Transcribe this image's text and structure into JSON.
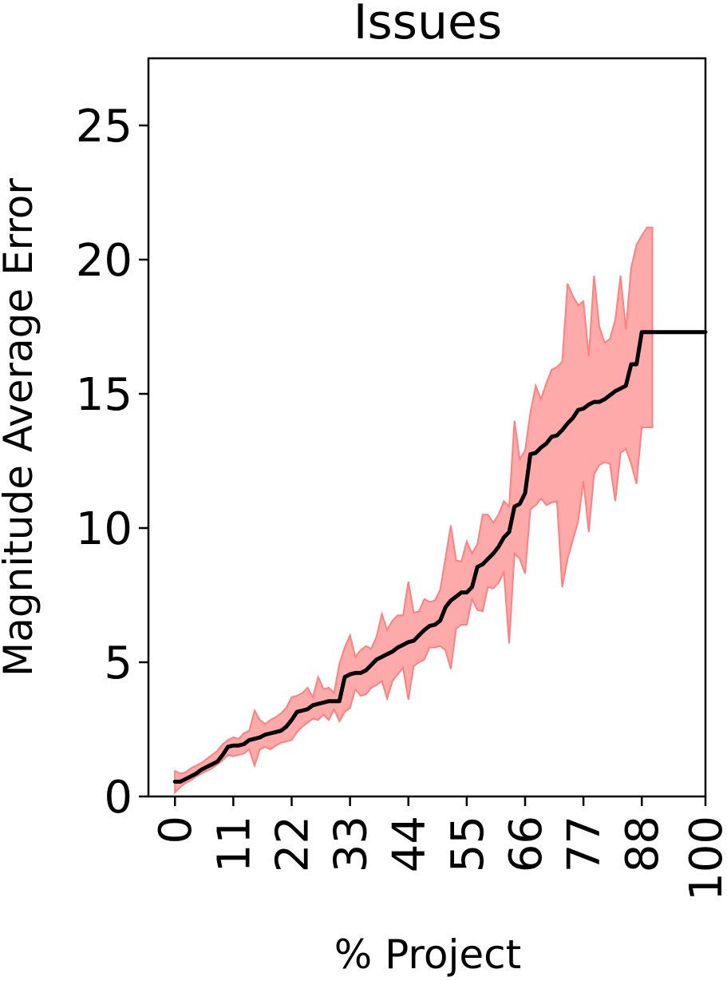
{
  "chart_data": {
    "type": "line",
    "title": "Issues",
    "xlabel": "% Project",
    "ylabel": "Magnitude Average Error",
    "xlim": [
      -5,
      100
    ],
    "ylim": [
      0,
      27.5
    ],
    "xticks": [
      0,
      11,
      22,
      33,
      44,
      55,
      66,
      77,
      88,
      100
    ],
    "xtick_labels": [
      "0",
      "11",
      "22",
      "33",
      "44",
      "55",
      "66",
      "77",
      "88",
      "100"
    ],
    "yticks": [
      0,
      5,
      10,
      15,
      20,
      25
    ],
    "ytick_labels": [
      "0",
      "5",
      "10",
      "15",
      "20",
      "25"
    ],
    "grid": false,
    "legend": "none",
    "colors": {
      "mean_line": "#000000",
      "band_fill": "#ffaaaa",
      "band_edge": "#ff8080"
    },
    "series": [
      {
        "kind": "mean",
        "x": [
          0,
          1,
          2,
          3,
          4,
          5,
          6,
          7,
          8,
          9,
          10,
          11,
          12,
          13,
          14,
          15,
          16,
          17,
          18,
          19,
          20,
          21,
          22,
          23,
          24,
          25,
          26,
          27,
          28,
          29,
          30,
          31,
          32,
          33,
          34,
          35,
          36,
          37,
          38,
          39,
          40,
          41,
          42,
          43,
          44,
          45,
          46,
          47,
          48,
          49,
          50,
          51,
          52,
          53,
          54,
          55,
          56,
          57,
          58,
          59,
          60,
          61,
          62,
          63,
          64,
          65,
          66,
          67,
          68,
          69,
          70,
          71,
          72,
          73,
          74,
          75,
          76,
          77,
          78,
          79,
          80,
          81,
          82,
          83,
          84,
          85,
          86,
          87,
          88,
          89,
          90,
          91,
          92,
          93,
          94,
          95,
          96,
          97,
          98,
          99,
          100
        ],
        "y": [
          0.55,
          0.55,
          0.65,
          0.75,
          0.85,
          1.0,
          1.1,
          1.2,
          1.3,
          1.55,
          1.85,
          1.9,
          1.9,
          1.95,
          2.1,
          2.15,
          2.2,
          2.3,
          2.35,
          2.4,
          2.45,
          2.6,
          2.85,
          3.15,
          3.2,
          3.25,
          3.4,
          3.45,
          3.5,
          3.55,
          3.55,
          3.55,
          4.45,
          4.55,
          4.6,
          4.6,
          4.7,
          4.9,
          5.1,
          5.2,
          5.3,
          5.4,
          5.55,
          5.65,
          5.75,
          5.8,
          6.0,
          6.2,
          6.35,
          6.4,
          6.55,
          7.05,
          7.3,
          7.45,
          7.6,
          7.6,
          7.8,
          8.55,
          8.65,
          8.85,
          9.05,
          9.3,
          9.65,
          9.85,
          10.8,
          10.9,
          11.3,
          12.75,
          12.8,
          13.0,
          13.15,
          13.4,
          13.45,
          13.65,
          13.9,
          14.1,
          14.4,
          14.45,
          14.6,
          14.7,
          14.7,
          14.8,
          14.95,
          15.1,
          15.2,
          15.3,
          16.1,
          16.1,
          17.3,
          17.3,
          17.3,
          17.3,
          17.3,
          17.3,
          17.3,
          17.3,
          17.3,
          17.3,
          17.3,
          17.3,
          17.3
        ]
      },
      {
        "kind": "band_upper",
        "x": [
          0,
          1,
          2,
          3,
          4,
          5,
          6,
          7,
          8,
          9,
          10,
          11,
          12,
          13,
          14,
          15,
          16,
          17,
          18,
          19,
          20,
          21,
          22,
          23,
          24,
          25,
          26,
          27,
          28,
          29,
          30,
          31,
          32,
          33,
          34,
          35,
          36,
          37,
          38,
          39,
          40,
          41,
          42,
          43,
          44,
          45,
          46,
          47,
          48,
          49,
          50,
          51,
          52,
          53,
          54,
          55,
          56,
          57,
          58,
          59,
          60,
          61,
          62,
          63,
          64,
          65,
          66,
          67,
          68,
          69,
          70,
          71,
          72,
          73,
          74,
          75,
          76,
          77,
          78,
          79,
          80,
          81,
          82,
          83,
          84,
          85,
          86,
          87,
          88,
          89,
          90
        ],
        "y": [
          0.95,
          0.85,
          0.9,
          1.05,
          1.15,
          1.25,
          1.4,
          1.55,
          1.7,
          1.95,
          2.1,
          2.2,
          2.15,
          2.35,
          2.45,
          3.2,
          2.85,
          2.7,
          2.85,
          2.95,
          3.1,
          3.3,
          3.7,
          3.75,
          3.85,
          4.05,
          3.7,
          4.45,
          4.0,
          4.05,
          3.85,
          4.95,
          5.55,
          6.0,
          5.2,
          5.45,
          5.6,
          5.5,
          5.95,
          6.8,
          6.2,
          6.55,
          6.75,
          6.75,
          8.0,
          6.85,
          6.9,
          7.35,
          7.25,
          7.3,
          7.7,
          8.9,
          10.1,
          8.8,
          8.75,
          9.5,
          9.05,
          9.4,
          10.5,
          10.5,
          10.2,
          10.5,
          11.0,
          10.8,
          14.0,
          12.55,
          12.9,
          14.3,
          15.3,
          14.8,
          15.4,
          15.9,
          16.0,
          16.2,
          19.1,
          18.65,
          18.3,
          18.45,
          16.4,
          19.4,
          17.5,
          16.9,
          17.05,
          17.75,
          19.4,
          17.4,
          19.7,
          20.55,
          20.9,
          21.2,
          21.2
        ]
      },
      {
        "kind": "band_lower",
        "x": [
          0,
          1,
          2,
          3,
          4,
          5,
          6,
          7,
          8,
          9,
          10,
          11,
          12,
          13,
          14,
          15,
          16,
          17,
          18,
          19,
          20,
          21,
          22,
          23,
          24,
          25,
          26,
          27,
          28,
          29,
          30,
          31,
          32,
          33,
          34,
          35,
          36,
          37,
          38,
          39,
          40,
          41,
          42,
          43,
          44,
          45,
          46,
          47,
          48,
          49,
          50,
          51,
          52,
          53,
          54,
          55,
          56,
          57,
          58,
          59,
          60,
          61,
          62,
          63,
          64,
          65,
          66,
          67,
          68,
          69,
          70,
          71,
          72,
          73,
          74,
          75,
          76,
          77,
          78,
          79,
          80,
          81,
          82,
          83,
          84,
          85,
          86,
          87,
          88,
          89,
          90
        ],
        "y": [
          0.15,
          0.35,
          0.5,
          0.6,
          0.75,
          0.85,
          0.95,
          1.05,
          1.2,
          1.35,
          1.55,
          1.5,
          1.55,
          1.6,
          1.75,
          1.15,
          1.75,
          1.85,
          1.75,
          1.9,
          2.0,
          2.05,
          2.1,
          2.4,
          2.6,
          2.75,
          2.9,
          2.85,
          3.05,
          2.85,
          3.25,
          2.8,
          3.15,
          3.3,
          4.0,
          3.75,
          3.8,
          4.05,
          4.15,
          4.3,
          3.65,
          4.3,
          4.55,
          4.8,
          3.6,
          4.85,
          5.0,
          5.1,
          5.55,
          5.55,
          5.6,
          5.45,
          4.75,
          6.25,
          6.4,
          6.4,
          7.35,
          6.95,
          6.9,
          7.8,
          7.75,
          7.95,
          8.35,
          5.7,
          9.05,
          8.85,
          8.3,
          10.7,
          10.85,
          11.1,
          10.85,
          10.95,
          11.0,
          7.8,
          8.85,
          9.55,
          10.25,
          11.75,
          9.85,
          12.0,
          12.35,
          12.45,
          12.4,
          11.0,
          12.8,
          12.95,
          12.4,
          11.65,
          13.75,
          13.75,
          13.75
        ]
      }
    ]
  }
}
